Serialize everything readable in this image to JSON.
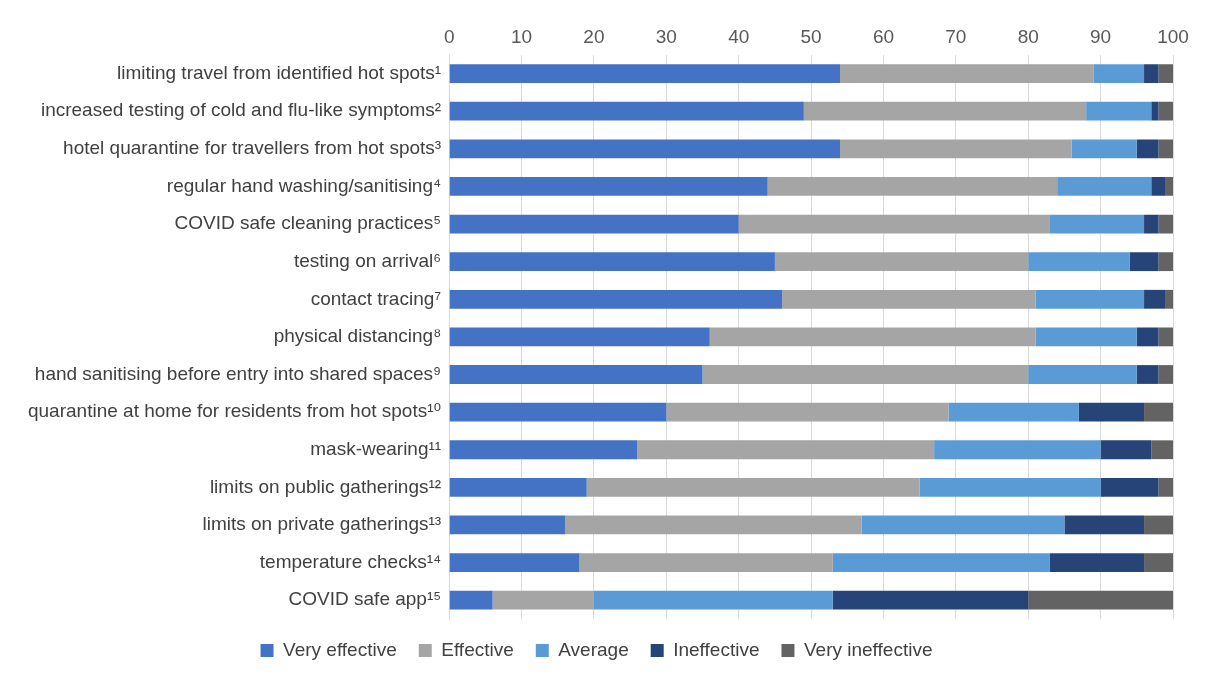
{
  "chart_data": {
    "type": "bar",
    "orientation": "horizontal",
    "stacked": true,
    "categories": [
      "limiting travel from identified hot spots¹",
      "increased testing of cold and flu-like symptoms²",
      "hotel quarantine for travellers from hot spots³",
      "regular hand washing/sanitising⁴",
      "COVID safe cleaning practices⁵",
      "testing on arrival⁶",
      "contact tracing⁷",
      "physical distancing⁸",
      "hand sanitising before entry into shared spaces⁹",
      "quarantine at home for residents from hot spots¹⁰",
      "mask-wearing¹¹",
      "limits on public gatherings¹²",
      "limits on private gatherings¹³",
      "temperature checks¹⁴",
      "COVID safe app¹⁵"
    ],
    "series": [
      {
        "name": "Very effective",
        "color": "#4472c4",
        "values": [
          54,
          49,
          54,
          44,
          40,
          45,
          46,
          36,
          35,
          30,
          26,
          19,
          16,
          18,
          6
        ]
      },
      {
        "name": "Effective",
        "color": "#a5a5a5",
        "values": [
          35,
          39,
          32,
          40,
          43,
          35,
          35,
          45,
          45,
          39,
          41,
          46,
          41,
          35,
          14
        ]
      },
      {
        "name": "Average",
        "color": "#5b9bd5",
        "values": [
          7,
          9,
          9,
          13,
          13,
          14,
          15,
          14,
          15,
          18,
          23,
          25,
          28,
          30,
          33
        ]
      },
      {
        "name": "Ineffective",
        "color": "#264478",
        "values": [
          2,
          1,
          3,
          2,
          2,
          4,
          3,
          3,
          3,
          9,
          7,
          8,
          11,
          13,
          27
        ]
      },
      {
        "name": "Very ineffective",
        "color": "#636363",
        "values": [
          2,
          2,
          2,
          1,
          2,
          2,
          1,
          2,
          2,
          4,
          3,
          2,
          4,
          4,
          20
        ]
      }
    ],
    "xlim": [
      0,
      100
    ],
    "xticks": [
      0,
      10,
      20,
      30,
      40,
      50,
      60,
      70,
      80,
      90,
      100
    ],
    "grid": "x",
    "legend": "bottom"
  }
}
